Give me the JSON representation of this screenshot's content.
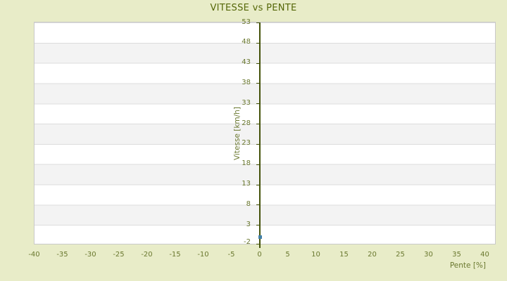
{
  "page": {
    "background_color": "#e8ecc8"
  },
  "chart_data": {
    "type": "scatter",
    "title": "VITESSE vs PENTE",
    "xlabel": "Pente [%]",
    "ylabel": "Vitesse [km/h]",
    "xlim": [
      -40,
      42
    ],
    "ylim": [
      -2,
      53
    ],
    "x_ticks": [
      -40,
      -35,
      -30,
      -25,
      -20,
      -15,
      -10,
      -5,
      0,
      5,
      10,
      15,
      20,
      25,
      30,
      35,
      40
    ],
    "y_ticks": [
      53,
      48,
      43,
      38,
      33,
      28,
      23,
      18,
      13,
      8,
      3,
      -2
    ],
    "grid": "horizontal-stripes-per-tick",
    "legend": "none",
    "points": [
      {
        "x": 0,
        "y": 0
      }
    ],
    "marker_color": "#4380a8",
    "axis_line_color": "#44520a",
    "tick_label_color": "#6a782f",
    "title_color": "#556708",
    "stripe_colors": [
      "#ffffff",
      "#f3f3f3"
    ],
    "gridline_color": "#dcdcdc"
  }
}
